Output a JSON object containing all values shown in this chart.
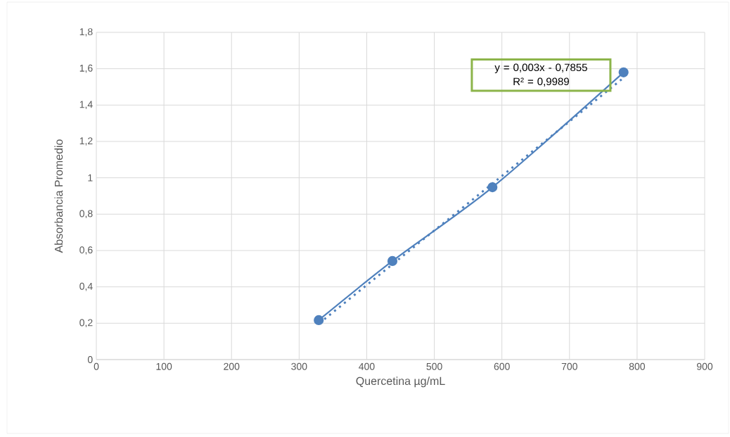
{
  "chart_data": {
    "type": "line",
    "xlabel": "Quercetina µg/mL",
    "ylabel": "Absorbancia Promedio",
    "xlim": [
      0,
      900
    ],
    "ylim": [
      0,
      1.8
    ],
    "xticks": [
      0,
      100,
      200,
      300,
      400,
      500,
      600,
      700,
      800,
      900
    ],
    "yticks": [
      0,
      {
        "value": 0.2,
        "label": "0,2"
      },
      {
        "value": 0.4,
        "label": "0,4"
      },
      {
        "value": 0.6,
        "label": "0,6"
      },
      {
        "value": 0.8,
        "label": "0,8"
      },
      1,
      {
        "value": 1.2,
        "label": "1,2"
      },
      {
        "value": 1.4,
        "label": "1,4"
      },
      {
        "value": 1.6,
        "label": "1,6"
      },
      {
        "value": 1.8,
        "label": "1,8"
      }
    ],
    "grid": true,
    "series": [
      {
        "color": "#4f81bd",
        "marker": "circle",
        "line_style": "solid",
        "x": [
          329,
          438,
          586,
          780
        ],
        "values": [
          0.217,
          0.542,
          0.948,
          1.58
        ]
      },
      {
        "color": "#4f81bd",
        "marker": "none",
        "line_style": "dotted",
        "x": [
          330,
          780
        ],
        "values": [
          0.2,
          1.55
        ]
      }
    ],
    "annotations": [
      "y = 0,003x - 0,7855",
      "R² = 0,9989"
    ]
  }
}
